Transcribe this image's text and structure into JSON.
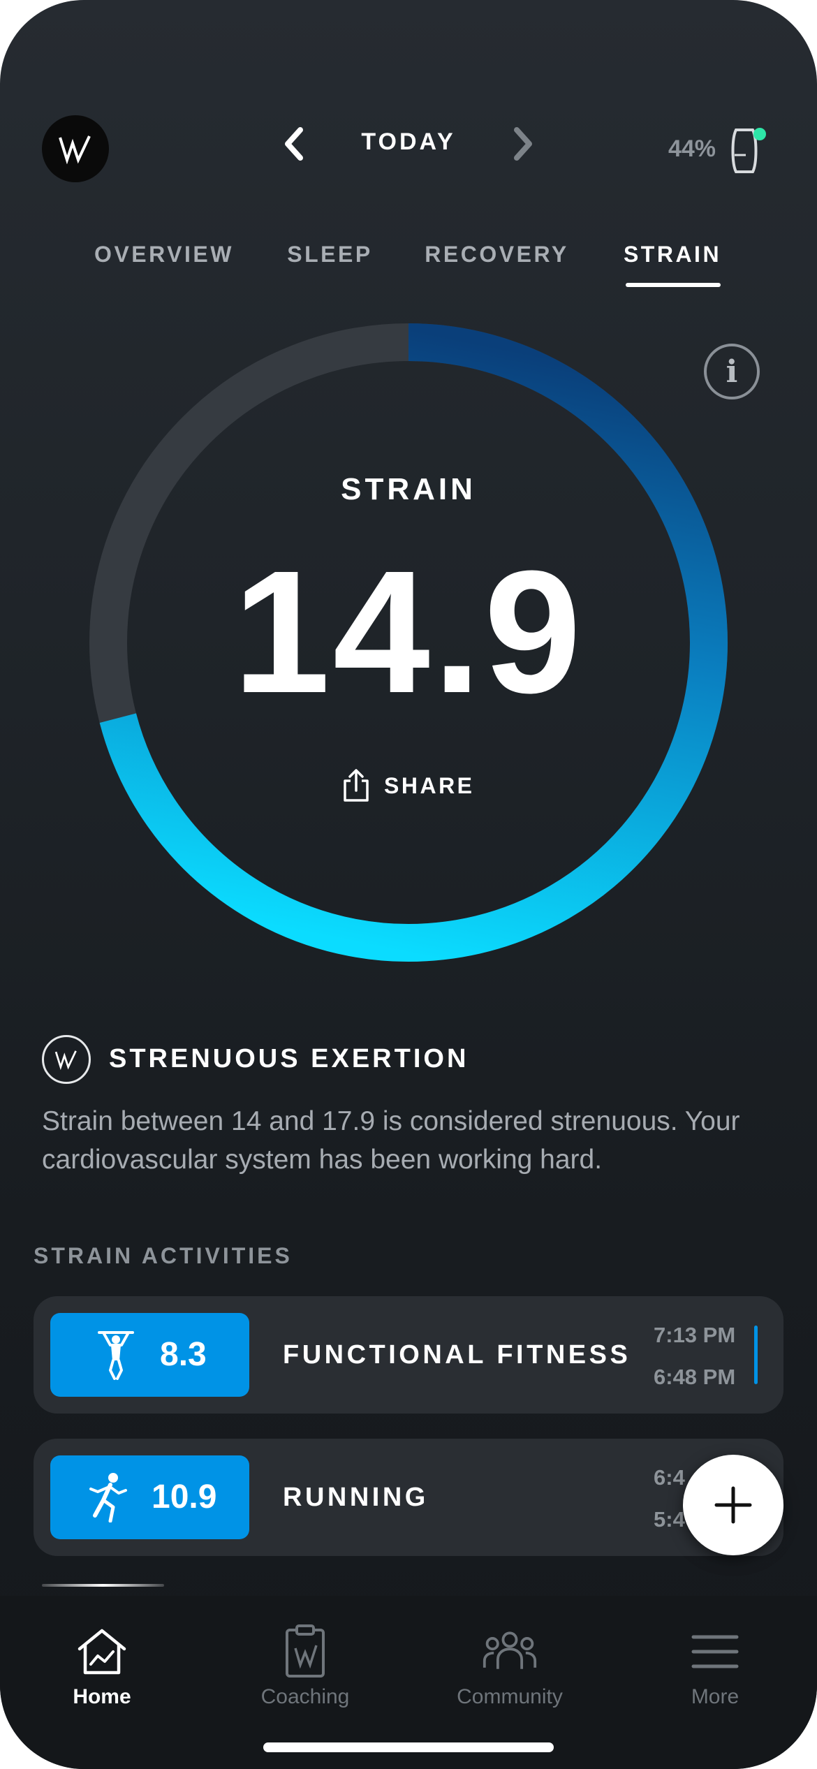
{
  "header": {
    "date_label": "TODAY",
    "battery_percent": "44%",
    "colors": {
      "strap_status_dot": "#2ee6a8"
    }
  },
  "tabs": [
    {
      "label": "OVERVIEW",
      "active": false
    },
    {
      "label": "SLEEP",
      "active": false
    },
    {
      "label": "RECOVERY",
      "active": false
    },
    {
      "label": "STRAIN",
      "active": true
    }
  ],
  "gauge": {
    "label": "STRAIN",
    "value": "14.9",
    "max_value": 21,
    "share_label": "SHARE",
    "colors": {
      "track": "#363b41",
      "arc_start": "#0a3f7a",
      "arc_mid": "#0a7fc0",
      "arc_end": "#0bdcff"
    }
  },
  "insight": {
    "title": "STRENUOUS EXERTION",
    "body": "Strain between 14 and 17.9 is considered strenuous. Your cardiovascular system has been working hard."
  },
  "activities": {
    "section_label": "STRAIN ACTIVITIES",
    "items": [
      {
        "icon": "pull-up-icon",
        "strain": "8.3",
        "name": "FUNCTIONAL FITNESS",
        "end_time": "7:13 PM",
        "start_time": "6:48 PM"
      },
      {
        "icon": "running-icon",
        "strain": "10.9",
        "name": "RUNNING",
        "end_time": "6:4",
        "start_time": "5:4"
      }
    ],
    "colors": {
      "badge": "#0093e6"
    }
  },
  "bottom_nav": [
    {
      "label": "Home",
      "icon": "home-icon",
      "active": true
    },
    {
      "label": "Coaching",
      "icon": "clipboard-icon",
      "active": false
    },
    {
      "label": "Community",
      "icon": "people-icon",
      "active": false
    },
    {
      "label": "More",
      "icon": "menu-icon",
      "active": false
    }
  ]
}
